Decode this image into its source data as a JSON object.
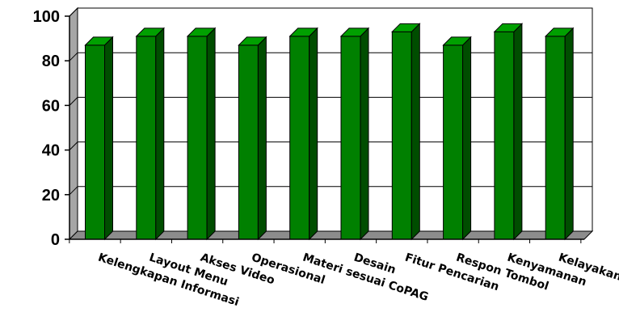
{
  "chart_data": {
    "type": "bar",
    "style": "3d",
    "categories": [
      "Kelengkapan Informasi",
      "Layout Menu",
      "Akses Video",
      "Operasional",
      "Materi sesuai CoPAG",
      "Desain",
      "Fitur Pencarian",
      "Respon Tombol",
      "Kenyamanan",
      "Kelayakan"
    ],
    "values": [
      87,
      91,
      91,
      87,
      91,
      91,
      93,
      87,
      93,
      91
    ],
    "title": "",
    "xlabel": "",
    "ylabel": "",
    "ylim": [
      0,
      100
    ],
    "yticks": [
      0,
      20,
      40,
      60,
      80,
      100
    ],
    "grid": true,
    "legend": "none",
    "colors": {
      "bar_front": "#008000",
      "bar_side": "#004d00",
      "bar_top": "#00a000",
      "back_wall": "#ffffff",
      "side_wall": "#a6a6a6",
      "floor": "#8c8c8c"
    }
  }
}
